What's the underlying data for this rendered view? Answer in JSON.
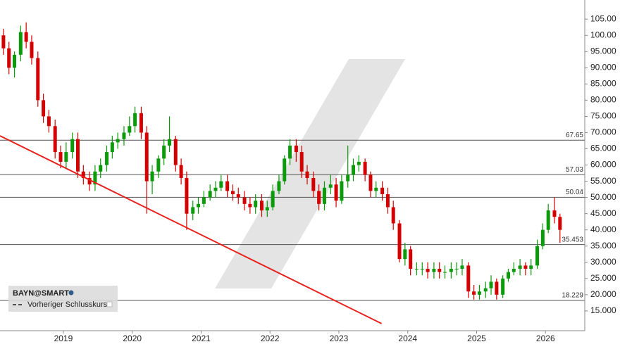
{
  "chart_data": {
    "type": "candlestick",
    "series": [
      {
        "name": "BAYN@SMART",
        "up_color": "#0a9a0a",
        "down_color": "#d40000",
        "x": [
          2018.13,
          2018.21,
          2018.29,
          2018.38,
          2018.46,
          2018.54,
          2018.63,
          2018.71,
          2018.79,
          2018.88,
          2018.96,
          2019.04,
          2019.13,
          2019.21,
          2019.29,
          2019.38,
          2019.46,
          2019.54,
          2019.63,
          2019.71,
          2019.79,
          2019.88,
          2019.96,
          2020.04,
          2020.13,
          2020.21,
          2020.29,
          2020.38,
          2020.46,
          2020.54,
          2020.63,
          2020.71,
          2020.79,
          2020.88,
          2020.96,
          2021.04,
          2021.13,
          2021.21,
          2021.29,
          2021.38,
          2021.46,
          2021.54,
          2021.63,
          2021.71,
          2021.79,
          2021.88,
          2021.96,
          2022.04,
          2022.13,
          2022.21,
          2022.29,
          2022.38,
          2022.46,
          2022.54,
          2022.63,
          2022.71,
          2022.79,
          2022.88,
          2022.96,
          2023.04,
          2023.13,
          2023.21,
          2023.29,
          2023.38,
          2023.46,
          2023.54,
          2023.63,
          2023.71,
          2023.79,
          2023.88,
          2023.96,
          2024.04,
          2024.13,
          2024.21,
          2024.29,
          2024.38,
          2024.46,
          2024.54,
          2024.63,
          2024.71,
          2024.79,
          2024.88,
          2024.96,
          2025.04,
          2025.13,
          2025.21,
          2025.29,
          2025.38,
          2025.46,
          2025.54,
          2025.63,
          2025.71,
          2025.79,
          2025.88,
          2025.96,
          2026.04,
          2026.13,
          2026.21
        ],
        "open": [
          100,
          96,
          90,
          94,
          101,
          98,
          93,
          80,
          75,
          72,
          64,
          61,
          64,
          68,
          58,
          56,
          54,
          58,
          60,
          64,
          67,
          68,
          70,
          72,
          76,
          70,
          55,
          58,
          62,
          66,
          68,
          60,
          56,
          45,
          47,
          48,
          50,
          52,
          53,
          55,
          52,
          51,
          50,
          48,
          47,
          49,
          46,
          47,
          52,
          55,
          62,
          66,
          64,
          58,
          56,
          52,
          48,
          53,
          54,
          49,
          55,
          57,
          60,
          61,
          57,
          52,
          53,
          51,
          47,
          42,
          31,
          34,
          28,
          28,
          28,
          27,
          28,
          27,
          27,
          28,
          28,
          29,
          21,
          20,
          21,
          22,
          24,
          20,
          25,
          27,
          28,
          29,
          28,
          29,
          35,
          40,
          46,
          44
        ],
        "high": [
          102,
          98,
          95,
          103,
          104,
          100,
          95,
          82,
          77,
          74,
          66,
          67,
          70,
          70,
          60,
          58,
          60,
          62,
          66,
          69,
          70,
          72,
          75,
          78,
          78,
          72,
          60,
          63,
          68,
          75,
          69,
          62,
          58,
          49,
          50,
          52,
          54,
          55,
          57,
          57,
          54,
          53,
          52,
          50,
          51,
          51,
          49,
          54,
          57,
          63,
          68,
          68,
          66,
          60,
          58,
          54,
          55,
          57,
          56,
          57,
          66,
          62,
          63,
          62,
          58,
          55,
          55,
          53,
          49,
          43,
          36,
          35,
          30,
          30,
          30,
          30,
          30,
          29,
          30,
          30,
          31,
          30,
          23,
          23,
          24,
          26,
          25,
          26,
          28,
          30,
          31,
          30,
          31,
          37,
          42,
          48,
          50,
          45
        ],
        "low": [
          94,
          88,
          87,
          92,
          96,
          91,
          78,
          73,
          70,
          62,
          59,
          59,
          62,
          56,
          54,
          52,
          52,
          56,
          58,
          62,
          65,
          66,
          69,
          70,
          68,
          45,
          51,
          56,
          60,
          64,
          58,
          54,
          40,
          43,
          45,
          47,
          49,
          50,
          52,
          50,
          49,
          48,
          46,
          45,
          45,
          44,
          44,
          46,
          51,
          54,
          60,
          61,
          56,
          54,
          50,
          46,
          46,
          51,
          47,
          48,
          53,
          55,
          58,
          55,
          50,
          50,
          49,
          45,
          40,
          30,
          29,
          26,
          26,
          26,
          25,
          25,
          25,
          25,
          25,
          26,
          26,
          19,
          18.5,
          18.5,
          19,
          20,
          18.5,
          19,
          24,
          26,
          26,
          26,
          26,
          28,
          34,
          39,
          42,
          36
        ],
        "close": [
          96,
          90,
          94,
          101,
          98,
          93,
          80,
          75,
          72,
          64,
          61,
          64,
          68,
          58,
          56,
          54,
          58,
          60,
          64,
          67,
          68,
          70,
          72,
          76,
          70,
          55,
          58,
          62,
          66,
          68,
          60,
          56,
          45,
          47,
          48,
          50,
          52,
          53,
          55,
          52,
          51,
          50,
          48,
          47,
          49,
          46,
          47,
          52,
          55,
          62,
          66,
          64,
          58,
          56,
          52,
          48,
          53,
          54,
          49,
          55,
          57,
          60,
          61,
          57,
          52,
          53,
          51,
          47,
          42,
          31,
          34,
          28,
          28,
          28,
          27,
          28,
          27,
          27,
          28,
          28,
          29,
          21,
          20,
          21,
          22,
          24,
          20,
          25,
          27,
          28,
          29,
          28,
          29,
          35,
          40,
          46,
          44,
          40
        ]
      }
    ],
    "levels": [
      67.65,
      57.03,
      50.04,
      18.229
    ],
    "previous_close": {
      "name": "Vorheriger Schlusskurs",
      "value": 35.453
    },
    "trendline": {
      "x": [
        2018.08,
        2023.62
      ],
      "y": [
        69,
        11.1
      ],
      "color": "#e8211d"
    },
    "xlim": [
      2018.08,
      2026.57
    ],
    "ylim": [
      8.9,
      110.9
    ],
    "xticks": [
      2019,
      2020,
      2021,
      2022,
      2023,
      2024,
      2025,
      2026
    ],
    "yticks": [
      {
        "value": 15,
        "label": "15.000"
      },
      {
        "value": 20,
        "label": "20.000"
      },
      {
        "value": 25,
        "label": "25.000"
      },
      {
        "value": 30,
        "label": "30.000"
      },
      {
        "value": 35,
        "label": "35.000"
      },
      {
        "value": 40,
        "label": "40.000"
      },
      {
        "value": 45,
        "label": "45.000"
      },
      {
        "value": 50,
        "label": "50.000"
      },
      {
        "value": 55,
        "label": "55.000"
      },
      {
        "value": 60,
        "label": "60.000"
      },
      {
        "value": 65,
        "label": "65.000"
      },
      {
        "value": 70,
        "label": "70.000"
      },
      {
        "value": 75,
        "label": "75.000"
      },
      {
        "value": 80,
        "label": "80.000"
      },
      {
        "value": 85,
        "label": "85.000"
      },
      {
        "value": 90,
        "label": "90.000"
      },
      {
        "value": 95,
        "label": "95.000"
      },
      {
        "value": 100,
        "label": "100.00"
      },
      {
        "value": 105,
        "label": "105.00"
      }
    ]
  }
}
